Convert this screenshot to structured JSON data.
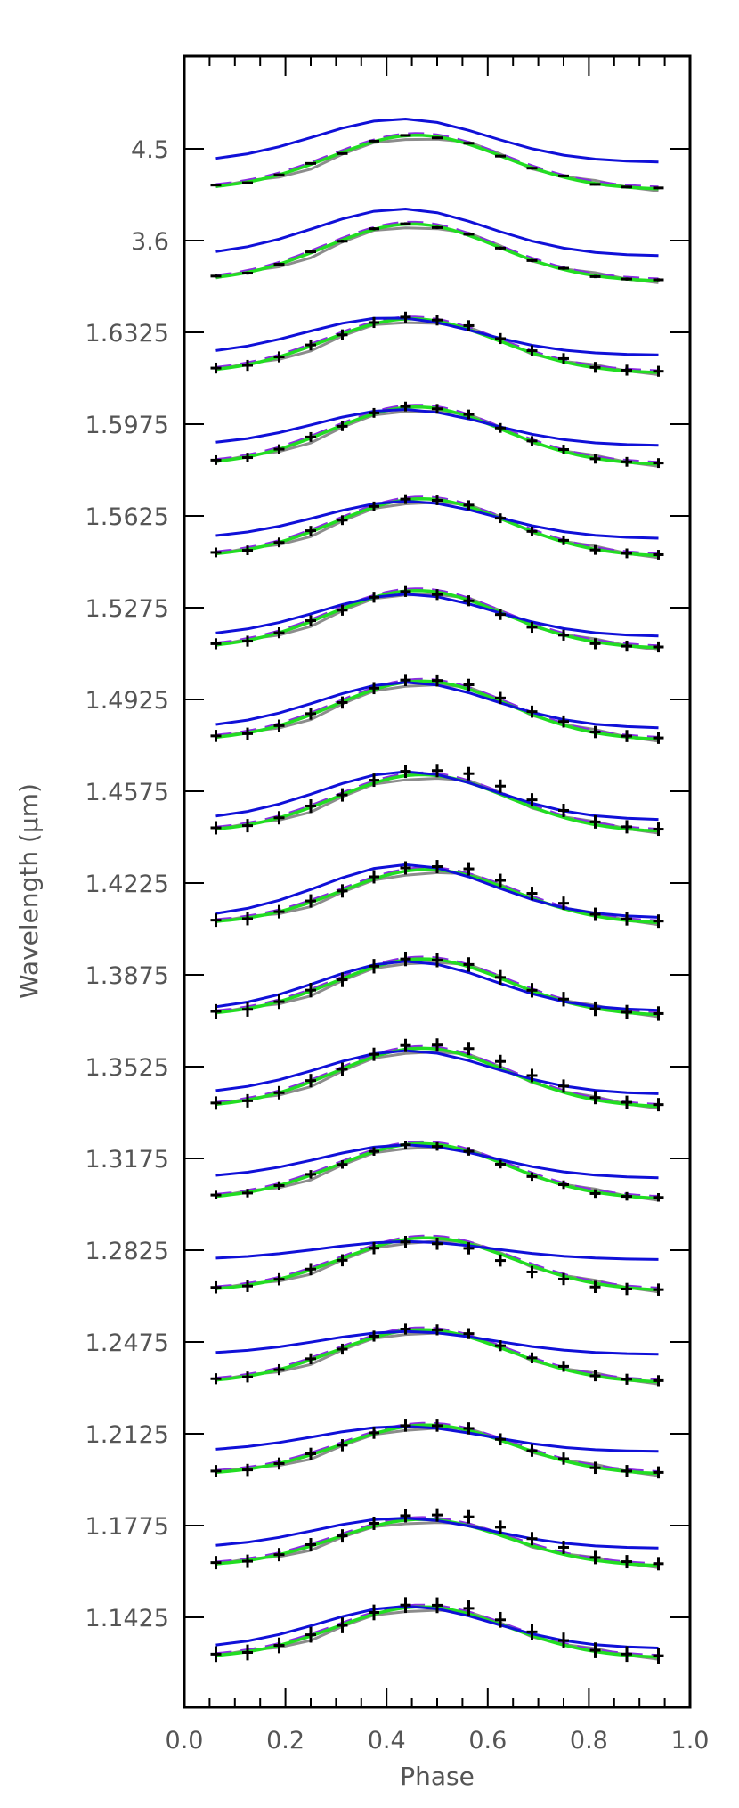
{
  "chart_data": {
    "type": "line",
    "xlabel": "Phase",
    "ylabel": "Wavelength (μm)",
    "xlim": [
      0.0,
      1.0
    ],
    "xticks": [
      "0.0",
      "0.2",
      "0.4",
      "0.6",
      "0.8",
      "1.0"
    ],
    "grid": false,
    "legend": "none",
    "phase": [
      0.0625,
      0.125,
      0.1875,
      0.25,
      0.3125,
      0.375,
      0.4375,
      0.5,
      0.5625,
      0.625,
      0.6875,
      0.75,
      0.8125,
      0.875,
      0.9375
    ],
    "colors": {
      "data": "#000000",
      "blue": "#1010d8",
      "green": "#22dd22",
      "gray": "#8c8c8c",
      "purple": "#8a2be2"
    },
    "panels": [
      {
        "label": "4.5",
        "amp": 0.9,
        "peak": 0.46,
        "shift": 0.0,
        "blue_amp": 0.72,
        "blue_peak": 0.43,
        "blue_up": 0.45,
        "err": 0.04,
        "resid": 0.0
      },
      {
        "label": "3.6",
        "amp": 0.95,
        "peak": 0.45,
        "shift": 0.0,
        "blue_amp": 0.78,
        "blue_peak": 0.43,
        "blue_up": 0.42,
        "err": 0.05,
        "resid": 0.0
      },
      {
        "label": "1.6325",
        "amp": 0.9,
        "peak": 0.45,
        "shift": 0.0,
        "blue_amp": 0.62,
        "blue_peak": 0.41,
        "blue_up": 0.3,
        "err": 0.18,
        "resid": 0.05
      },
      {
        "label": "1.5975",
        "amp": 0.96,
        "peak": 0.46,
        "shift": 0.0,
        "blue_amp": 0.6,
        "blue_peak": 0.43,
        "blue_up": 0.32,
        "err": 0.16,
        "resid": 0.02
      },
      {
        "label": "1.5625",
        "amp": 0.96,
        "peak": 0.47,
        "shift": 0.0,
        "blue_amp": 0.62,
        "blue_peak": 0.44,
        "blue_up": 0.3,
        "err": 0.16,
        "resid": 0.01
      },
      {
        "label": "1.5275",
        "amp": 0.96,
        "peak": 0.46,
        "shift": 0.0,
        "blue_amp": 0.7,
        "blue_peak": 0.44,
        "blue_up": 0.2,
        "err": 0.18,
        "resid": -0.03
      },
      {
        "label": "1.4925",
        "amp": 0.98,
        "peak": 0.47,
        "shift": 0.0,
        "blue_amp": 0.76,
        "blue_peak": 0.44,
        "blue_up": 0.2,
        "err": 0.2,
        "resid": 0.06
      },
      {
        "label": "1.4575",
        "amp": 0.95,
        "peak": 0.47,
        "shift": 0.0,
        "blue_amp": 0.8,
        "blue_peak": 0.44,
        "blue_up": 0.2,
        "err": 0.22,
        "resid": 0.14
      },
      {
        "label": "1.4225",
        "amp": 0.9,
        "peak": 0.48,
        "shift": 0.0,
        "blue_amp": 0.88,
        "blue_peak": 0.44,
        "blue_up": 0.1,
        "err": 0.22,
        "resid": 0.1
      },
      {
        "label": "1.3875",
        "amp": 0.94,
        "peak": 0.47,
        "shift": 0.0,
        "blue_amp": 0.82,
        "blue_peak": 0.44,
        "blue_up": 0.08,
        "err": 0.24,
        "resid": 0.02
      },
      {
        "label": "1.3525",
        "amp": 0.98,
        "peak": 0.47,
        "shift": 0.0,
        "blue_amp": 0.72,
        "blue_peak": 0.44,
        "blue_up": 0.22,
        "err": 0.22,
        "resid": 0.12
      },
      {
        "label": "1.3175",
        "amp": 0.92,
        "peak": 0.47,
        "shift": 0.0,
        "blue_amp": 0.55,
        "blue_peak": 0.44,
        "blue_up": 0.35,
        "err": 0.14,
        "resid": -0.02
      },
      {
        "label": "1.2825",
        "amp": 0.88,
        "peak": 0.48,
        "shift": 0.0,
        "blue_amp": 0.3,
        "blue_peak": 0.44,
        "blue_up": 0.52,
        "err": 0.2,
        "resid": -0.1
      },
      {
        "label": "1.2475",
        "amp": 0.88,
        "peak": 0.47,
        "shift": 0.0,
        "blue_amp": 0.38,
        "blue_peak": 0.44,
        "blue_up": 0.47,
        "err": 0.18,
        "resid": 0.04
      },
      {
        "label": "1.2125",
        "amp": 0.82,
        "peak": 0.48,
        "shift": 0.0,
        "blue_amp": 0.42,
        "blue_peak": 0.43,
        "blue_up": 0.38,
        "err": 0.2,
        "resid": 0.02
      },
      {
        "label": "1.1775",
        "amp": 0.78,
        "peak": 0.47,
        "shift": 0.0,
        "blue_amp": 0.5,
        "blue_peak": 0.43,
        "blue_up": 0.3,
        "err": 0.22,
        "resid": 0.14
      },
      {
        "label": "1.1425",
        "amp": 0.85,
        "peak": 0.47,
        "shift": 0.0,
        "blue_amp": 0.7,
        "blue_peak": 0.44,
        "blue_up": 0.16,
        "err": 0.26,
        "resid": 0.08
      }
    ]
  }
}
